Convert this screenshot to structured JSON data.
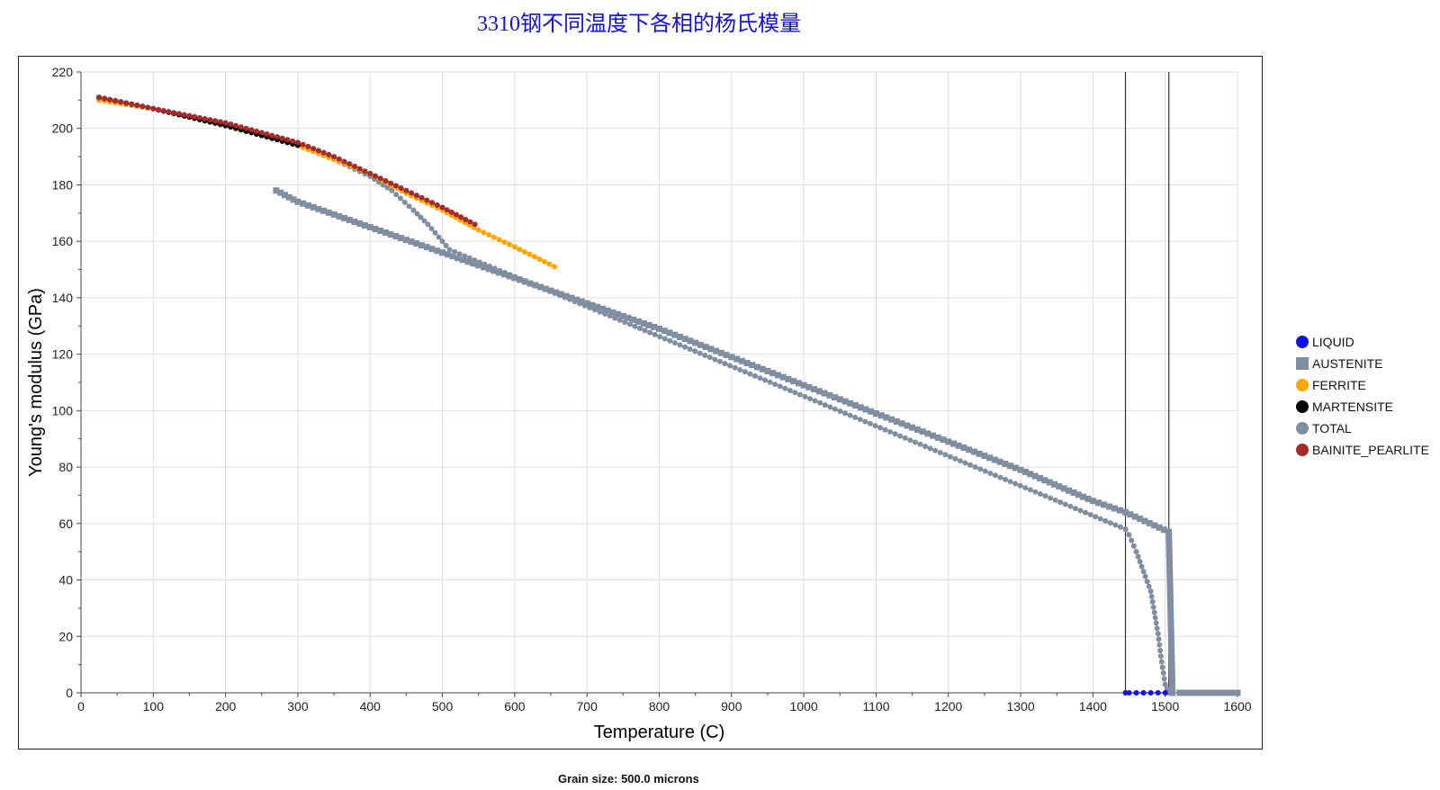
{
  "chart_data": {
    "type": "scatter",
    "title": "3310钢不同温度下各相的杨氏模量",
    "xlabel": "Temperature (C)",
    "ylabel": "Young's modulus (GPa)",
    "xlim": [
      0,
      1600
    ],
    "ylim": [
      0,
      220
    ],
    "xticks": [
      0,
      100,
      200,
      300,
      400,
      500,
      600,
      700,
      800,
      900,
      1000,
      1100,
      1200,
      1300,
      1400,
      1500,
      1600
    ],
    "yticks": [
      0,
      20,
      40,
      60,
      80,
      100,
      120,
      140,
      160,
      180,
      200,
      220
    ],
    "grid": true,
    "legend_position": "right",
    "vertical_lines": [
      1445,
      1505
    ],
    "series": [
      {
        "name": "LIQUID",
        "color": "#1010ee",
        "marker": "circle",
        "x": [
          1445,
          1450,
          1460,
          1470,
          1480,
          1490,
          1500
        ],
        "y": [
          0,
          0,
          0,
          0,
          0,
          0,
          0
        ]
      },
      {
        "name": "AUSTENITE",
        "color": "#7f8ea0",
        "marker": "square",
        "x": [
          270,
          300,
          400,
          500,
          600,
          700,
          800,
          900,
          1000,
          1100,
          1200,
          1300,
          1400,
          1445,
          1505,
          1510,
          1520,
          1540,
          1560,
          1580,
          1600
        ],
        "y": [
          178,
          174,
          165,
          156,
          147,
          138,
          129,
          119,
          109,
          99,
          89,
          79,
          68,
          64,
          57,
          0,
          0,
          0,
          0,
          0,
          0
        ]
      },
      {
        "name": "FERRITE",
        "color": "#ffa500",
        "marker": "circle",
        "x": [
          25,
          100,
          200,
          300,
          400,
          450,
          500,
          550,
          600,
          655
        ],
        "y": [
          210,
          207,
          201,
          194,
          184,
          177,
          171,
          164,
          158,
          151
        ]
      },
      {
        "name": "MARTENSITE",
        "color": "#000000",
        "marker": "circle",
        "x": [
          25,
          100,
          200,
          300
        ],
        "y": [
          211,
          207,
          201,
          194
        ]
      },
      {
        "name": "TOTAL",
        "color": "#7f8ea0",
        "marker": "circle",
        "x": [
          25,
          100,
          200,
          300,
          350,
          400,
          430,
          460,
          480,
          500,
          510,
          1445,
          1450,
          1460,
          1470,
          1480,
          1490,
          1495,
          1500,
          1505
        ],
        "y": [
          211,
          207,
          201,
          194,
          189,
          183,
          178,
          171,
          166,
          160,
          157,
          58,
          56,
          50,
          43,
          36,
          21,
          11,
          3,
          0
        ]
      },
      {
        "name": "BAINITE_PEARLITE",
        "color": "#a52a2a",
        "marker": "circle",
        "x": [
          25,
          100,
          200,
          300,
          350,
          400,
          450,
          500,
          545
        ],
        "y": [
          211,
          207,
          202,
          195,
          190,
          184,
          178,
          172,
          166
        ]
      }
    ],
    "footer": "Grain size: 500.0 microns"
  }
}
